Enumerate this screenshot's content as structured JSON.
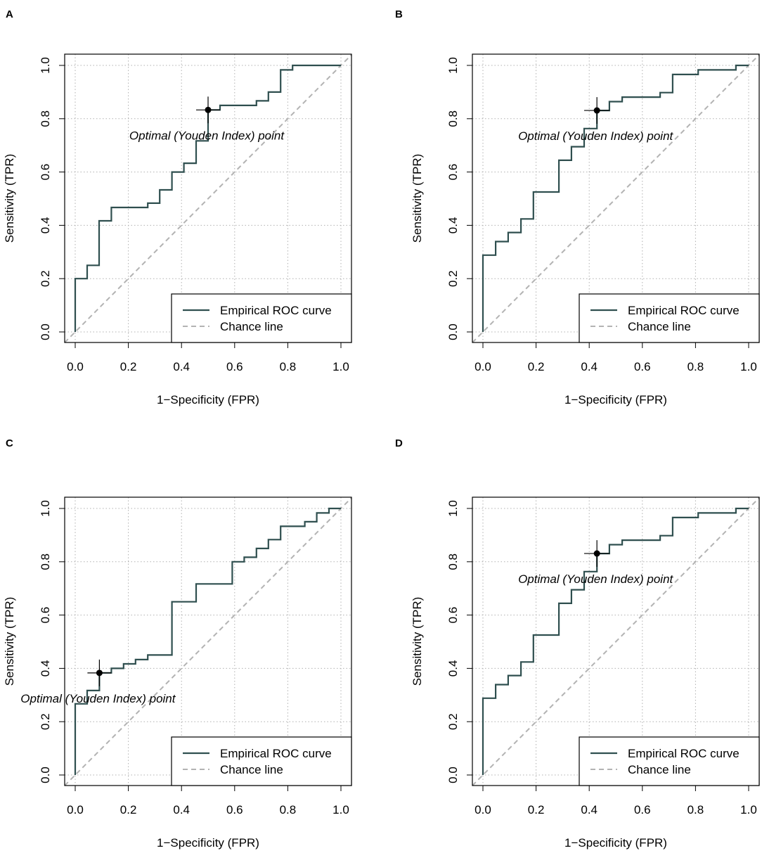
{
  "chart_data": [
    {
      "panel_label": "A",
      "type": "line",
      "xlabel": "1−Specificity (FPR)",
      "ylabel": "Sensitivity (TPR)",
      "xlim": [
        0,
        1
      ],
      "ylim": [
        0,
        1
      ],
      "xticks": [
        "0.0",
        "0.2",
        "0.4",
        "0.6",
        "0.8",
        "1.0"
      ],
      "yticks": [
        "0.0",
        "0.2",
        "0.4",
        "0.6",
        "0.8",
        "1.0"
      ],
      "grid": true,
      "legend_position": "bottom-right",
      "series": [
        {
          "name": "Empirical ROC curve",
          "color": "#2f4f4f",
          "points": [
            [
              0,
              0
            ],
            [
              0,
              0.2
            ],
            [
              0.045,
              0.2
            ],
            [
              0.045,
              0.25
            ],
            [
              0.09,
              0.25
            ],
            [
              0.09,
              0.417
            ],
            [
              0.136,
              0.417
            ],
            [
              0.136,
              0.467
            ],
            [
              0.273,
              0.467
            ],
            [
              0.273,
              0.483
            ],
            [
              0.318,
              0.483
            ],
            [
              0.318,
              0.533
            ],
            [
              0.364,
              0.533
            ],
            [
              0.364,
              0.6
            ],
            [
              0.409,
              0.6
            ],
            [
              0.409,
              0.633
            ],
            [
              0.455,
              0.633
            ],
            [
              0.455,
              0.717
            ],
            [
              0.5,
              0.717
            ],
            [
              0.5,
              0.833
            ],
            [
              0.545,
              0.833
            ],
            [
              0.545,
              0.85
            ],
            [
              0.682,
              0.85
            ],
            [
              0.682,
              0.867
            ],
            [
              0.727,
              0.867
            ],
            [
              0.727,
              0.9
            ],
            [
              0.773,
              0.9
            ],
            [
              0.773,
              0.983
            ],
            [
              0.818,
              0.983
            ],
            [
              0.818,
              1
            ],
            [
              1,
              1
            ]
          ]
        },
        {
          "name": "Chance line",
          "color": "#b3b3b3",
          "points": [
            [
              0,
              0
            ],
            [
              1,
              1
            ]
          ]
        }
      ],
      "optimal_point": {
        "x": 0.5,
        "y": 0.833,
        "x_err": 0.045,
        "y_err": 0.05
      },
      "annotation": "Optimal (Youden Index) point"
    },
    {
      "panel_label": "B",
      "type": "line",
      "xlabel": "1−Specificity (FPR)",
      "ylabel": "Sensitivity (TPR)",
      "xlim": [
        0,
        1
      ],
      "ylim": [
        0,
        1
      ],
      "xticks": [
        "0.0",
        "0.2",
        "0.4",
        "0.6",
        "0.8",
        "1.0"
      ],
      "yticks": [
        "0.0",
        "0.2",
        "0.4",
        "0.6",
        "0.8",
        "1.0"
      ],
      "grid": true,
      "legend_position": "bottom-right",
      "series": [
        {
          "name": "Empirical ROC curve",
          "color": "#2f4f4f",
          "points": [
            [
              0,
              0
            ],
            [
              0,
              0.288
            ],
            [
              0.048,
              0.288
            ],
            [
              0.048,
              0.339
            ],
            [
              0.095,
              0.339
            ],
            [
              0.095,
              0.373
            ],
            [
              0.143,
              0.373
            ],
            [
              0.143,
              0.424
            ],
            [
              0.19,
              0.424
            ],
            [
              0.19,
              0.525
            ],
            [
              0.286,
              0.525
            ],
            [
              0.286,
              0.644
            ],
            [
              0.333,
              0.644
            ],
            [
              0.333,
              0.695
            ],
            [
              0.381,
              0.695
            ],
            [
              0.381,
              0.763
            ],
            [
              0.429,
              0.763
            ],
            [
              0.429,
              0.831
            ],
            [
              0.476,
              0.831
            ],
            [
              0.476,
              0.864
            ],
            [
              0.524,
              0.864
            ],
            [
              0.524,
              0.881
            ],
            [
              0.667,
              0.881
            ],
            [
              0.667,
              0.898
            ],
            [
              0.714,
              0.898
            ],
            [
              0.714,
              0.966
            ],
            [
              0.81,
              0.966
            ],
            [
              0.81,
              0.983
            ],
            [
              0.952,
              0.983
            ],
            [
              0.952,
              1
            ],
            [
              1,
              1
            ]
          ]
        },
        {
          "name": "Chance line",
          "color": "#b3b3b3",
          "points": [
            [
              0,
              0
            ],
            [
              1,
              1
            ]
          ]
        }
      ],
      "optimal_point": {
        "x": 0.429,
        "y": 0.831,
        "x_err": 0.048,
        "y_err": 0.05
      },
      "annotation": "Optimal (Youden Index) point"
    },
    {
      "panel_label": "C",
      "type": "line",
      "xlabel": "1−Specificity (FPR)",
      "ylabel": "Sensitivity (TPR)",
      "xlim": [
        0,
        1
      ],
      "ylim": [
        0,
        1
      ],
      "xticks": [
        "0.0",
        "0.2",
        "0.4",
        "0.6",
        "0.8",
        "1.0"
      ],
      "yticks": [
        "0.0",
        "0.2",
        "0.4",
        "0.6",
        "0.8",
        "1.0"
      ],
      "grid": true,
      "legend_position": "bottom-right",
      "series": [
        {
          "name": "Empirical ROC curve",
          "color": "#2f4f4f",
          "points": [
            [
              0,
              0
            ],
            [
              0,
              0.267
            ],
            [
              0.045,
              0.267
            ],
            [
              0.045,
              0.317
            ],
            [
              0.091,
              0.317
            ],
            [
              0.091,
              0.383
            ],
            [
              0.136,
              0.383
            ],
            [
              0.136,
              0.4
            ],
            [
              0.182,
              0.4
            ],
            [
              0.182,
              0.417
            ],
            [
              0.227,
              0.417
            ],
            [
              0.227,
              0.433
            ],
            [
              0.273,
              0.433
            ],
            [
              0.273,
              0.45
            ],
            [
              0.364,
              0.45
            ],
            [
              0.364,
              0.65
            ],
            [
              0.455,
              0.65
            ],
            [
              0.455,
              0.717
            ],
            [
              0.591,
              0.717
            ],
            [
              0.591,
              0.8
            ],
            [
              0.636,
              0.8
            ],
            [
              0.636,
              0.817
            ],
            [
              0.682,
              0.817
            ],
            [
              0.682,
              0.85
            ],
            [
              0.727,
              0.85
            ],
            [
              0.727,
              0.883
            ],
            [
              0.773,
              0.883
            ],
            [
              0.773,
              0.933
            ],
            [
              0.864,
              0.933
            ],
            [
              0.864,
              0.95
            ],
            [
              0.909,
              0.95
            ],
            [
              0.909,
              0.983
            ],
            [
              0.955,
              0.983
            ],
            [
              0.955,
              1
            ],
            [
              1,
              1
            ]
          ]
        },
        {
          "name": "Chance line",
          "color": "#b3b3b3",
          "points": [
            [
              0,
              0
            ],
            [
              1,
              1
            ]
          ]
        }
      ],
      "optimal_point": {
        "x": 0.091,
        "y": 0.383,
        "x_err": 0.045,
        "y_err": 0.05
      },
      "annotation": "Optimal (Youden Index) point"
    },
    {
      "panel_label": "D",
      "type": "line",
      "xlabel": "1−Specificity (FPR)",
      "ylabel": "Sensitivity (TPR)",
      "xlim": [
        0,
        1
      ],
      "ylim": [
        0,
        1
      ],
      "xticks": [
        "0.0",
        "0.2",
        "0.4",
        "0.6",
        "0.8",
        "1.0"
      ],
      "yticks": [
        "0.0",
        "0.2",
        "0.4",
        "0.6",
        "0.8",
        "1.0"
      ],
      "grid": true,
      "legend_position": "bottom-right",
      "series": [
        {
          "name": "Empirical ROC curve",
          "color": "#2f4f4f",
          "points": [
            [
              0,
              0
            ],
            [
              0,
              0.288
            ],
            [
              0.048,
              0.288
            ],
            [
              0.048,
              0.339
            ],
            [
              0.095,
              0.339
            ],
            [
              0.095,
              0.373
            ],
            [
              0.143,
              0.373
            ],
            [
              0.143,
              0.424
            ],
            [
              0.19,
              0.424
            ],
            [
              0.19,
              0.525
            ],
            [
              0.286,
              0.525
            ],
            [
              0.286,
              0.644
            ],
            [
              0.333,
              0.644
            ],
            [
              0.333,
              0.695
            ],
            [
              0.381,
              0.695
            ],
            [
              0.381,
              0.763
            ],
            [
              0.429,
              0.763
            ],
            [
              0.429,
              0.831
            ],
            [
              0.476,
              0.831
            ],
            [
              0.476,
              0.864
            ],
            [
              0.524,
              0.864
            ],
            [
              0.524,
              0.881
            ],
            [
              0.667,
              0.881
            ],
            [
              0.667,
              0.898
            ],
            [
              0.714,
              0.898
            ],
            [
              0.714,
              0.966
            ],
            [
              0.81,
              0.966
            ],
            [
              0.81,
              0.983
            ],
            [
              0.952,
              0.983
            ],
            [
              0.952,
              1
            ],
            [
              1,
              1
            ]
          ]
        },
        {
          "name": "Chance line",
          "color": "#b3b3b3",
          "points": [
            [
              0,
              0
            ],
            [
              1,
              1
            ]
          ]
        }
      ],
      "optimal_point": {
        "x": 0.429,
        "y": 0.831,
        "x_err": 0.048,
        "y_err": 0.05
      },
      "annotation": "Optimal (Youden Index) point"
    }
  ]
}
